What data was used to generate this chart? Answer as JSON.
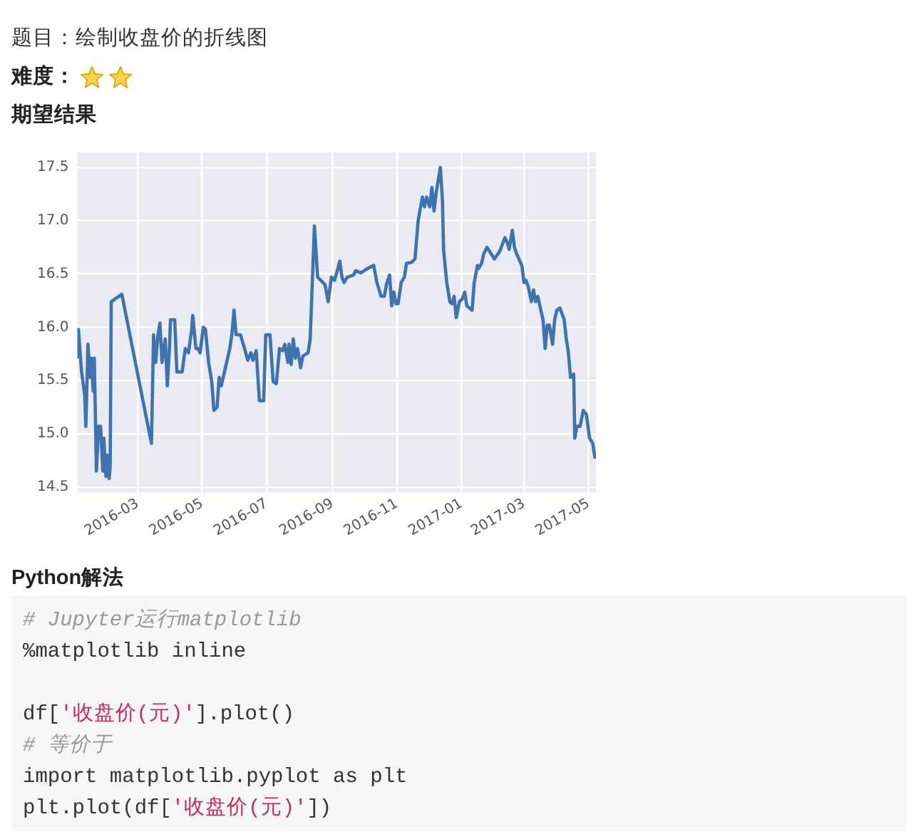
{
  "chart_data": {
    "type": "line",
    "title": "题目：绘制收盘价的折线图",
    "subtitle": "难度：",
    "annotations": [
      "期望结果",
      "Python解法",
      "# Jupyter运行matplotlib\n%matplotlib inline\n\ndf['收盘价(元)'].plot()\n# 等价于\nimport matplotlib.pyplot as plt\nplt.plot(df['收盘价(元)'])"
    ],
    "x": [
      "2016-01-04",
      "2016-01-05",
      "2016-01-08",
      "2016-01-11",
      "2016-01-12",
      "2016-01-14",
      "2016-01-16",
      "2016-01-17",
      "2016-01-19",
      "2016-01-20",
      "2016-01-22",
      "2016-01-24",
      "2016-01-26",
      "2016-01-28",
      "2016-01-29",
      "2016-01-31",
      "2016-02-01",
      "2016-02-03",
      "2016-02-04",
      "2016-02-05",
      "2016-02-15",
      "2016-03-14",
      "2016-03-16",
      "2016-03-18",
      "2016-03-20",
      "2016-03-22",
      "2016-03-24",
      "2016-03-27",
      "2016-03-29",
      "2016-03-31",
      "2016-04-01",
      "2016-04-05",
      "2016-04-07",
      "2016-04-12",
      "2016-04-15",
      "2016-04-18",
      "2016-04-21",
      "2016-04-22",
      "2016-04-25",
      "2016-04-27",
      "2016-04-29",
      "2016-05-02",
      "2016-05-04",
      "2016-05-07",
      "2016-05-10",
      "2016-05-12",
      "2016-05-15",
      "2016-05-17",
      "2016-05-19",
      "2016-05-22",
      "2016-05-27",
      "2016-05-29",
      "2016-05-31",
      "2016-06-02",
      "2016-06-06",
      "2016-06-10",
      "2016-06-13",
      "2016-06-16",
      "2016-06-18",
      "2016-06-21",
      "2016-06-24",
      "2016-06-28",
      "2016-06-30",
      "2016-07-04",
      "2016-07-07",
      "2016-07-10",
      "2016-07-13",
      "2016-07-16",
      "2016-07-18",
      "2016-07-21",
      "2016-07-22",
      "2016-07-24",
      "2016-07-26",
      "2016-07-28",
      "2016-07-30",
      "2016-08-02",
      "2016-08-04",
      "2016-08-09",
      "2016-08-11",
      "2016-08-13",
      "2016-08-15",
      "2016-08-18",
      "2016-08-21",
      "2016-08-25",
      "2016-08-28",
      "2016-08-31",
      "2016-09-03",
      "2016-09-05",
      "2016-09-08",
      "2016-09-10",
      "2016-09-12",
      "2016-09-15",
      "2016-09-21",
      "2016-09-23",
      "2016-09-28",
      "2016-10-04",
      "2016-10-10",
      "2016-10-13",
      "2016-10-17",
      "2016-10-20",
      "2016-10-22",
      "2016-10-25",
      "2016-10-27",
      "2016-10-29",
      "2016-10-31",
      "2016-11-02",
      "2016-11-05",
      "2016-11-08",
      "2016-11-10",
      "2016-11-15",
      "2016-11-18",
      "2016-11-21",
      "2016-11-25",
      "2016-11-27",
      "2016-11-29",
      "2016-12-02",
      "2016-12-04",
      "2016-12-06",
      "2016-12-08",
      "2016-12-12",
      "2016-12-14",
      "2016-12-15",
      "2016-12-18",
      "2016-12-21",
      "2016-12-23",
      "2016-12-25",
      "2016-12-27",
      "2016-12-30",
      "2017-01-02",
      "2017-01-04",
      "2017-01-06",
      "2017-01-11",
      "2017-01-13",
      "2017-01-16",
      "2017-01-17",
      "2017-01-20",
      "2017-01-22",
      "2017-01-25",
      "2017-01-29",
      "2017-02-01",
      "2017-02-06",
      "2017-02-11",
      "2017-02-13",
      "2017-02-15",
      "2017-02-18",
      "2017-02-20",
      "2017-02-22",
      "2017-02-27",
      "2017-03-01",
      "2017-03-03",
      "2017-03-05",
      "2017-03-08",
      "2017-03-10",
      "2017-03-12",
      "2017-03-14",
      "2017-03-16",
      "2017-03-19",
      "2017-03-21",
      "2017-03-23",
      "2017-03-25",
      "2017-03-28",
      "2017-03-30",
      "2017-04-01",
      "2017-04-04",
      "2017-04-08",
      "2017-04-10",
      "2017-04-12",
      "2017-04-14",
      "2017-04-17",
      "2017-04-18",
      "2017-04-20",
      "2017-04-23",
      "2017-04-26",
      "2017-04-29",
      "2017-05-02",
      "2017-05-05",
      "2017-05-07"
    ],
    "values": [
      15.72,
      15.98,
      15.58,
      15.36,
      15.07,
      15.84,
      15.53,
      15.71,
      15.4,
      15.71,
      14.65,
      15.07,
      15.07,
      14.65,
      14.96,
      14.6,
      14.8,
      14.58,
      14.69,
      16.24,
      16.31,
      14.91,
      15.93,
      15.67,
      15.91,
      16.04,
      15.67,
      15.89,
      15.45,
      15.8,
      16.07,
      16.07,
      15.58,
      15.58,
      15.8,
      15.76,
      15.98,
      16.11,
      15.8,
      15.8,
      15.76,
      16.0,
      15.98,
      15.67,
      15.49,
      15.22,
      15.25,
      15.53,
      15.45,
      15.58,
      15.8,
      15.93,
      16.16,
      15.93,
      15.93,
      15.8,
      15.69,
      15.76,
      15.69,
      15.78,
      15.31,
      15.31,
      15.93,
      15.93,
      15.49,
      15.47,
      15.8,
      15.78,
      15.84,
      15.67,
      15.84,
      15.65,
      15.89,
      15.71,
      15.8,
      15.62,
      15.73,
      15.76,
      15.89,
      16.42,
      16.95,
      16.47,
      16.44,
      16.4,
      16.24,
      16.47,
      16.44,
      16.51,
      16.62,
      16.47,
      16.42,
      16.47,
      16.49,
      16.53,
      16.51,
      16.55,
      16.58,
      16.42,
      16.29,
      16.29,
      16.4,
      16.49,
      16.2,
      16.33,
      16.22,
      16.22,
      16.42,
      16.47,
      16.6,
      16.61,
      16.64,
      17.0,
      17.22,
      17.13,
      17.22,
      17.13,
      17.31,
      17.09,
      17.26,
      17.5,
      17.18,
      16.73,
      16.42,
      16.24,
      16.22,
      16.29,
      16.09,
      16.24,
      16.27,
      16.33,
      16.2,
      16.16,
      16.42,
      16.58,
      16.55,
      16.6,
      16.69,
      16.75,
      16.69,
      16.64,
      16.71,
      16.84,
      16.8,
      16.73,
      16.91,
      16.75,
      16.69,
      16.58,
      16.42,
      16.44,
      16.38,
      16.24,
      16.35,
      16.24,
      16.29,
      16.2,
      16.07,
      15.8,
      16.02,
      16.02,
      15.84,
      16.07,
      16.16,
      16.18,
      16.07,
      15.89,
      15.76,
      15.53,
      15.56,
      14.96,
      15.07,
      15.07,
      15.22,
      15.18,
      14.96,
      14.91,
      14.78
    ],
    "color": "#4072ae",
    "xlim": [
      "2016-01-04",
      "2017-05-08"
    ],
    "xticks": [
      "2016-03",
      "2016-05",
      "2016-07",
      "2016-09",
      "2016-11",
      "2017-01",
      "2017-03",
      "2017-05"
    ],
    "ylim": [
      14.45,
      17.64
    ],
    "yticks": [
      14.5,
      {
        "value": 15,
        "label": "15.0"
      },
      15.5,
      {
        "value": 16,
        "label": "16.0"
      },
      16.5,
      {
        "value": 17,
        "label": "17.0"
      },
      17.5
    ],
    "grid": true,
    "legend": false
  }
}
